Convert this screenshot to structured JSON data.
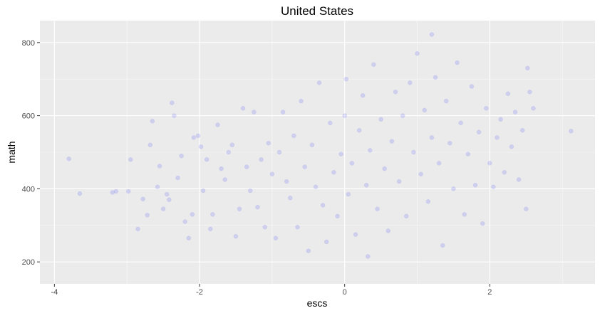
{
  "chart_data": {
    "type": "scatter",
    "title": "United States",
    "xlabel": "escs",
    "ylabel": "math",
    "xlim": [
      -4.2,
      3.45
    ],
    "ylim": [
      140,
      860
    ],
    "x_ticks": [
      -4,
      -2,
      0,
      2
    ],
    "x_tick_labels": [
      "-4",
      "-2",
      "0",
      "2"
    ],
    "y_ticks": [
      200,
      400,
      600,
      800
    ],
    "y_tick_labels": [
      "200",
      "400",
      "600",
      "800"
    ],
    "grid": true,
    "point_color": "#0000ff",
    "point_alpha": 0.12,
    "series": [
      {
        "points": [
          [
            -3.8,
            482
          ],
          [
            -3.65,
            387
          ],
          [
            -3.2,
            390
          ],
          [
            -3.15,
            393
          ],
          [
            -2.98,
            393
          ],
          [
            -2.95,
            480
          ],
          [
            -2.85,
            290
          ],
          [
            -2.78,
            372
          ],
          [
            -2.72,
            328
          ],
          [
            -2.68,
            520
          ],
          [
            -2.65,
            585
          ],
          [
            -2.58,
            405
          ],
          [
            -2.55,
            462
          ],
          [
            -2.5,
            345
          ],
          [
            -2.45,
            385
          ],
          [
            -2.42,
            370
          ],
          [
            -2.38,
            635
          ],
          [
            -2.35,
            600
          ],
          [
            -2.3,
            430
          ],
          [
            -2.25,
            490
          ],
          [
            -2.2,
            310
          ],
          [
            -2.15,
            265
          ],
          [
            -2.1,
            330
          ],
          [
            -2.08,
            540
          ],
          [
            -2.02,
            545
          ],
          [
            -1.98,
            515
          ],
          [
            -1.95,
            395
          ],
          [
            -1.9,
            480
          ],
          [
            -1.85,
            290
          ],
          [
            -1.82,
            330
          ],
          [
            -1.75,
            575
          ],
          [
            -1.7,
            455
          ],
          [
            -1.65,
            425
          ],
          [
            -1.6,
            500
          ],
          [
            -1.55,
            520
          ],
          [
            -1.5,
            270
          ],
          [
            -1.45,
            345
          ],
          [
            -1.4,
            620
          ],
          [
            -1.35,
            460
          ],
          [
            -1.3,
            395
          ],
          [
            -1.25,
            610
          ],
          [
            -1.2,
            350
          ],
          [
            -1.15,
            480
          ],
          [
            -1.1,
            295
          ],
          [
            -1.05,
            525
          ],
          [
            -1.0,
            440
          ],
          [
            -0.95,
            265
          ],
          [
            -0.9,
            500
          ],
          [
            -0.85,
            610
          ],
          [
            -0.8,
            420
          ],
          [
            -0.75,
            375
          ],
          [
            -0.7,
            545
          ],
          [
            -0.65,
            295
          ],
          [
            -0.6,
            640
          ],
          [
            -0.55,
            460
          ],
          [
            -0.5,
            230
          ],
          [
            -0.45,
            520
          ],
          [
            -0.4,
            405
          ],
          [
            -0.35,
            690
          ],
          [
            -0.3,
            355
          ],
          [
            -0.25,
            255
          ],
          [
            -0.2,
            580
          ],
          [
            -0.15,
            445
          ],
          [
            -0.1,
            325
          ],
          [
            -0.05,
            495
          ],
          [
            0.0,
            600
          ],
          [
            0.02,
            700
          ],
          [
            0.05,
            385
          ],
          [
            0.1,
            470
          ],
          [
            0.15,
            275
          ],
          [
            0.2,
            560
          ],
          [
            0.25,
            655
          ],
          [
            0.3,
            410
          ],
          [
            0.32,
            215
          ],
          [
            0.35,
            505
          ],
          [
            0.4,
            740
          ],
          [
            0.45,
            345
          ],
          [
            0.5,
            590
          ],
          [
            0.55,
            455
          ],
          [
            0.6,
            285
          ],
          [
            0.65,
            530
          ],
          [
            0.7,
            665
          ],
          [
            0.75,
            420
          ],
          [
            0.8,
            600
          ],
          [
            0.85,
            325
          ],
          [
            0.9,
            690
          ],
          [
            0.95,
            500
          ],
          [
            1.0,
            770
          ],
          [
            1.05,
            440
          ],
          [
            1.1,
            615
          ],
          [
            1.15,
            365
          ],
          [
            1.2,
            540
          ],
          [
            1.25,
            705
          ],
          [
            1.3,
            470
          ],
          [
            1.35,
            245
          ],
          [
            1.4,
            640
          ],
          [
            1.45,
            525
          ],
          [
            1.5,
            400
          ],
          [
            1.55,
            745
          ],
          [
            1.6,
            580
          ],
          [
            1.65,
            330
          ],
          [
            1.7,
            495
          ],
          [
            1.75,
            680
          ],
          [
            1.8,
            410
          ],
          [
            1.85,
            555
          ],
          [
            1.9,
            305
          ],
          [
            1.95,
            620
          ],
          [
            2.0,
            470
          ],
          [
            2.05,
            405
          ],
          [
            2.1,
            540
          ],
          [
            2.15,
            590
          ],
          [
            2.2,
            445
          ],
          [
            2.25,
            660
          ],
          [
            2.3,
            515
          ],
          [
            2.35,
            610
          ],
          [
            2.4,
            425
          ],
          [
            2.45,
            560
          ],
          [
            2.5,
            345
          ],
          [
            2.52,
            730
          ],
          [
            2.55,
            665
          ],
          [
            2.6,
            620
          ],
          [
            3.12,
            558
          ],
          [
            1.2,
            822
          ]
        ]
      }
    ]
  }
}
